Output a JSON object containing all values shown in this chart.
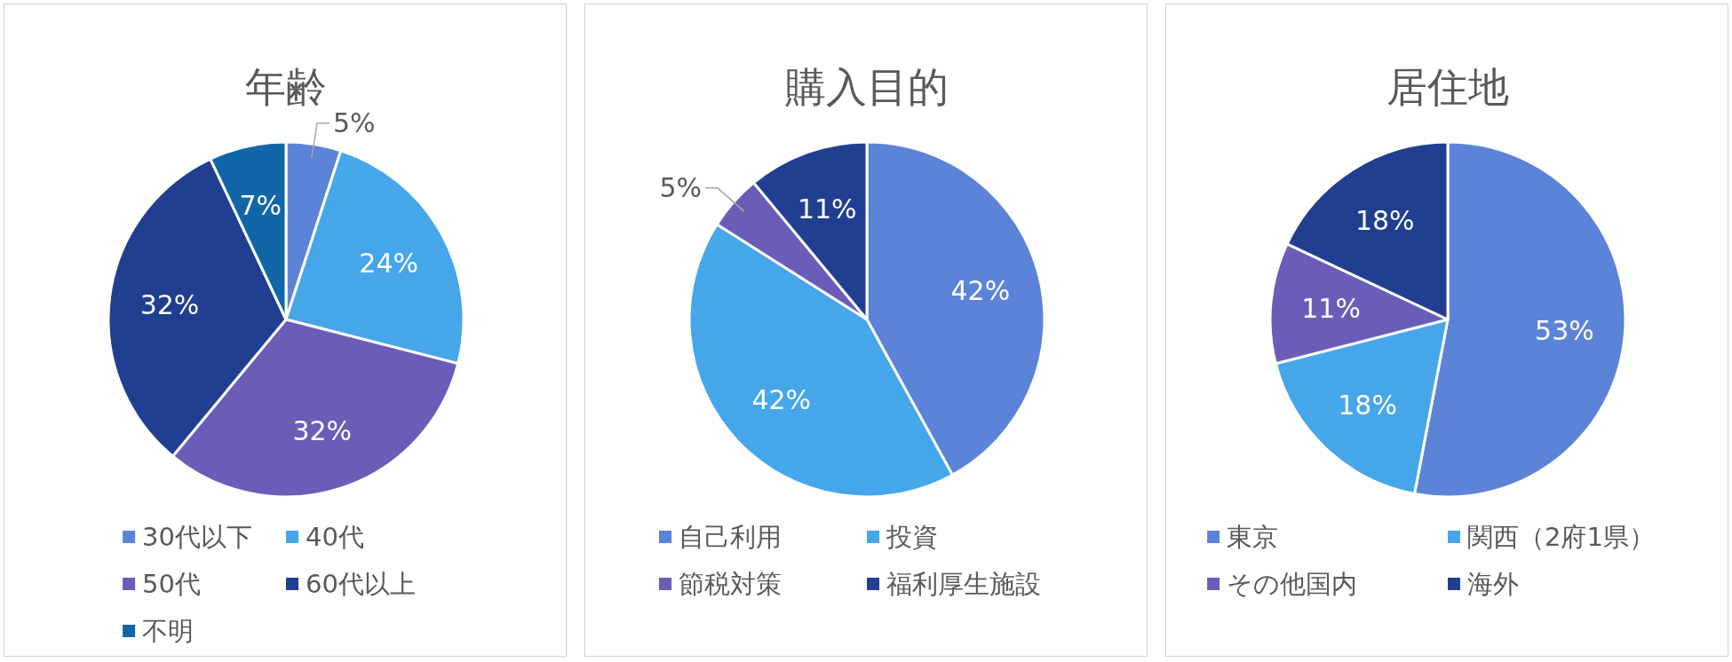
{
  "chart_data": [
    {
      "type": "pie",
      "title": "年齢",
      "categories": [
        "30代以下",
        "40代",
        "50代",
        "60代以上",
        "不明"
      ],
      "values": [
        5,
        24,
        32,
        32,
        7
      ],
      "value_labels": [
        "5%",
        "24%",
        "32%",
        "32%",
        "7%"
      ],
      "colors": [
        "#5b84d9",
        "#46a6ea",
        "#6a5db8",
        "#213f91",
        "#1166a8"
      ],
      "legend": "bottom"
    },
    {
      "type": "pie",
      "title": "購入目的",
      "categories": [
        "自己利用",
        "投資",
        "節税対策",
        "福利厚生施設"
      ],
      "values": [
        42,
        42,
        5,
        11
      ],
      "value_labels": [
        "42%",
        "42%",
        "5%",
        "11%"
      ],
      "colors": [
        "#5b84d9",
        "#46a6ea",
        "#6a5db8",
        "#213f91"
      ],
      "legend": "bottom"
    },
    {
      "type": "pie",
      "title": "居住地",
      "categories": [
        "東京",
        "関西（2府1県）",
        "その他国内",
        "海外"
      ],
      "values": [
        53,
        18,
        11,
        18
      ],
      "value_labels": [
        "53%",
        "18%",
        "11%",
        "18%"
      ],
      "colors": [
        "#5b84d9",
        "#46a6ea",
        "#6a5db8",
        "#213f91"
      ],
      "legend": "bottom"
    }
  ]
}
